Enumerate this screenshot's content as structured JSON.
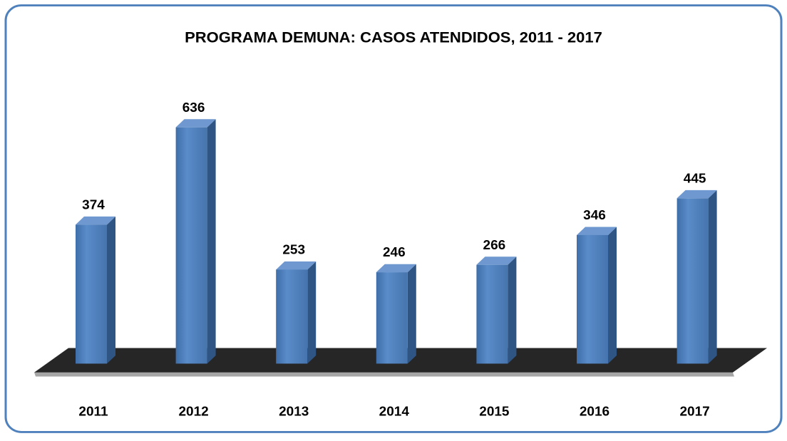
{
  "chart_data": {
    "type": "bar3d",
    "title": "PROGRAMA DEMUNA: CASOS ATENDIDOS, 2011 - 2017",
    "categories": [
      "2011",
      "2012",
      "2013",
      "2014",
      "2015",
      "2016",
      "2017"
    ],
    "values": [
      374,
      636,
      253,
      246,
      266,
      346,
      445
    ],
    "color": "#4f81bd"
  }
}
